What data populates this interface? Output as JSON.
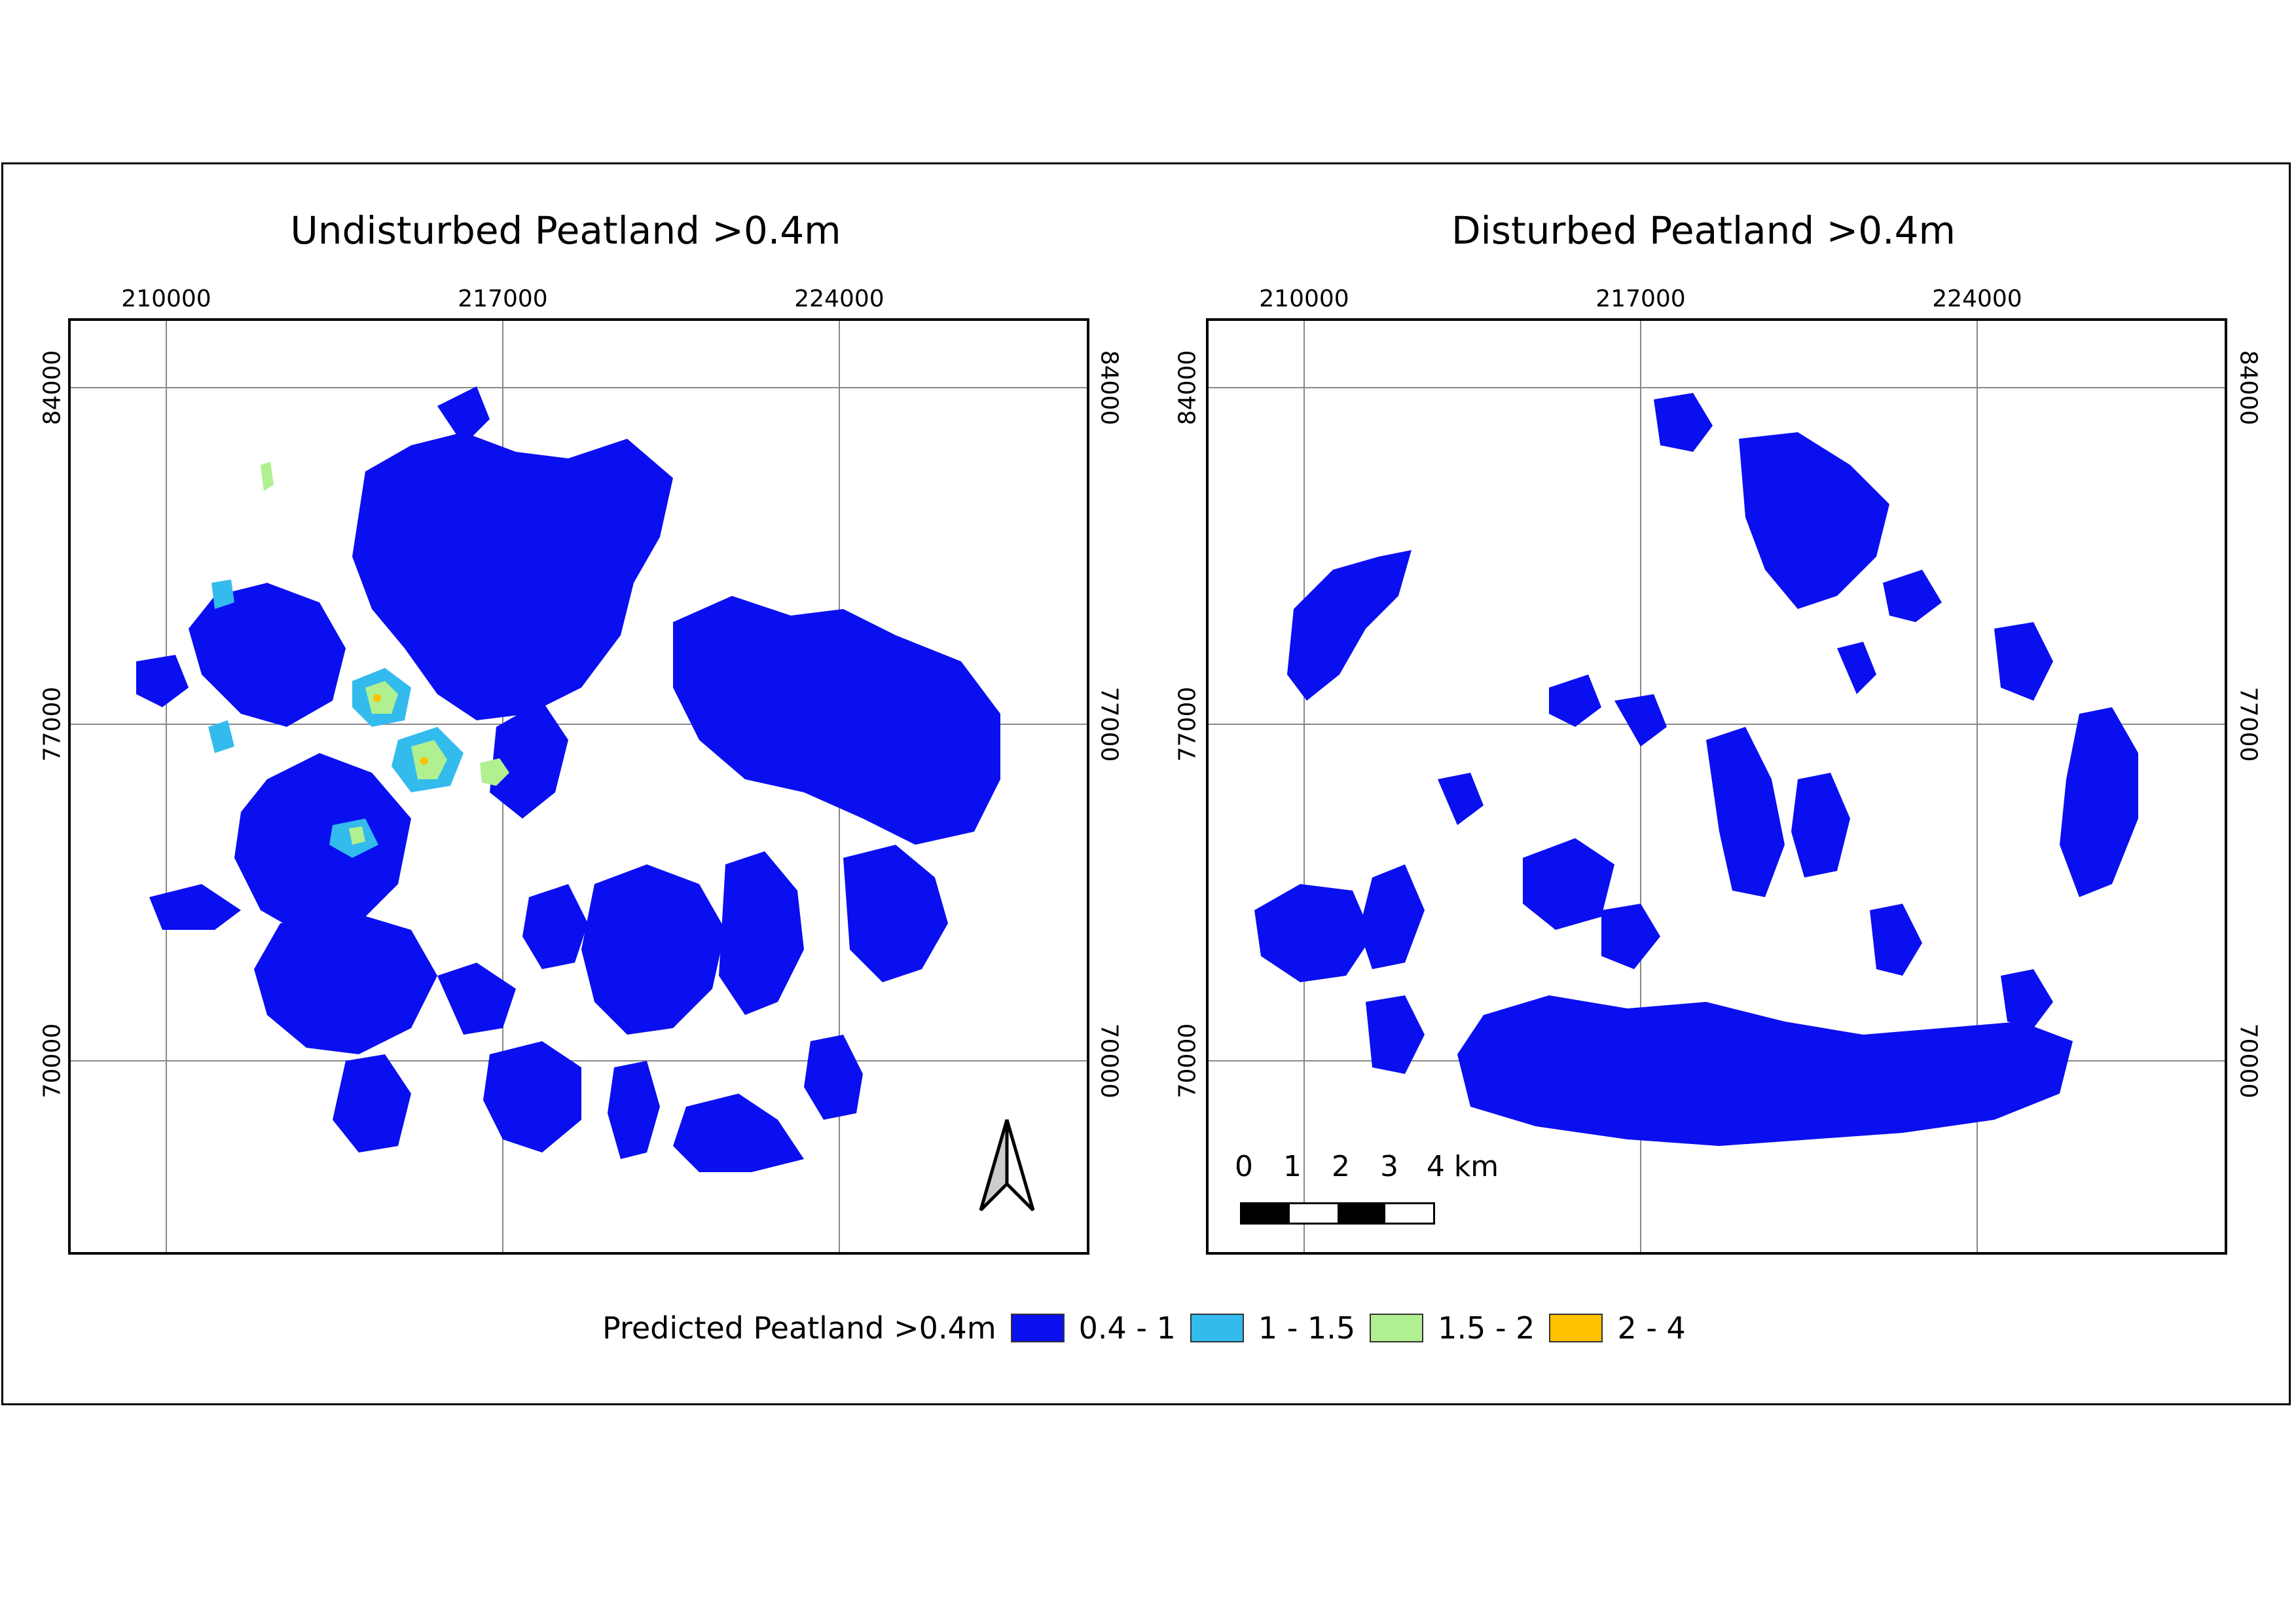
{
  "maps": [
    {
      "title": "Undisturbed Peatland >0.4m",
      "x_ticks": [
        "210000",
        "217000",
        "224000"
      ],
      "y_ticks": [
        "84000",
        "77000",
        "70000"
      ]
    },
    {
      "title": "Disturbed Peatland >0.4m",
      "x_ticks": [
        "210000",
        "217000",
        "224000"
      ],
      "y_ticks": [
        "84000",
        "77000",
        "70000"
      ]
    }
  ],
  "north_arrow_icon": "north-arrow-icon",
  "scale_bar": {
    "labels": [
      "0",
      "1",
      "2",
      "3",
      "4 km"
    ]
  },
  "legend": {
    "title": "Predicted Peatland >0.4m",
    "classes": [
      {
        "label": "0.4 - 1",
        "color": "#0a0ff0"
      },
      {
        "label": "1 - 1.5",
        "color": "#33bbee"
      },
      {
        "label": "1.5 - 2",
        "color": "#b0f090"
      },
      {
        "label": "2 - 4",
        "color": "#ffc000"
      }
    ]
  },
  "colors": {
    "peat_blue": "#0a0ff0",
    "peat_cyan": "#33bbee",
    "peat_green": "#b0f090",
    "peat_orange": "#ffc000",
    "grid": "#888888"
  }
}
